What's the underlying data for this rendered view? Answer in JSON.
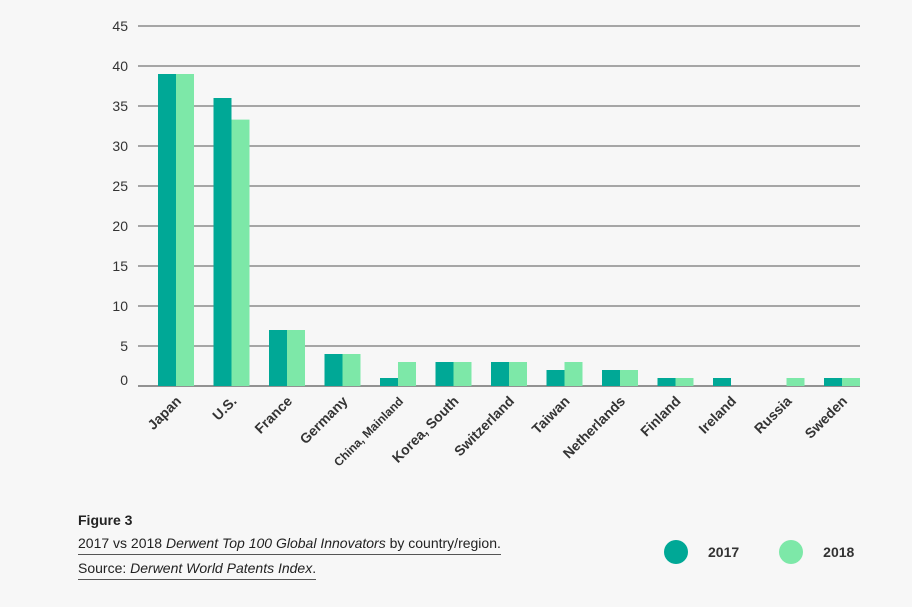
{
  "chart_data": {
    "type": "bar",
    "categories": [
      "Japan",
      "U.S.",
      "France",
      "Germany",
      "China, Mainland",
      "Korea, South",
      "Switzerland",
      "Taiwan",
      "Netherlands",
      "Finland",
      "Ireland",
      "Russia",
      "Sweden"
    ],
    "series": [
      {
        "name": "2017",
        "values": [
          39,
          36,
          7,
          4,
          1,
          3,
          3,
          2,
          2,
          1,
          1,
          0,
          1
        ],
        "color": "#00a896"
      },
      {
        "name": "2018",
        "values": [
          39,
          33.3,
          7,
          4,
          3,
          3,
          3,
          3,
          2,
          1,
          0,
          1,
          1
        ],
        "color": "#7de8a8"
      }
    ],
    "ylim": [
      0,
      45
    ],
    "yticks": [
      0,
      5,
      10,
      15,
      20,
      25,
      30,
      35,
      40,
      45
    ],
    "grid": true,
    "legend_position": "bottom-right"
  },
  "caption": {
    "figure_label": "Figure 3",
    "line1_prefix": "2017 vs 2018 ",
    "line1_italic": "Derwent Top 100 Global Innovators",
    "line1_suffix": " by country/region.",
    "line2_prefix": "Source: ",
    "line2_italic": "Derwent World Patents Index",
    "line2_suffix": "."
  },
  "legend": [
    {
      "label": "2017",
      "color": "#00a896"
    },
    {
      "label": "2018",
      "color": "#7de8a8"
    }
  ]
}
